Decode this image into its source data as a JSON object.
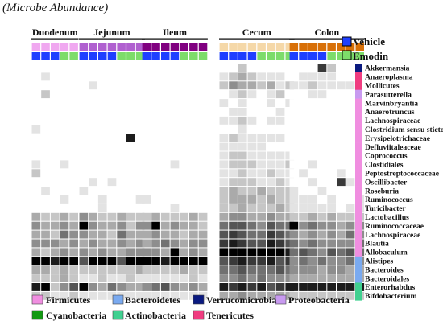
{
  "title": "(Microbe Abundance)",
  "treatment_legend": [
    {
      "label": "Vehicle",
      "color": "#1f3fff"
    },
    {
      "label": "Emodin",
      "color": "#7ddc6a"
    }
  ],
  "phylum_legend": [
    {
      "label": "Firmicutes",
      "color": "#f08ee0"
    },
    {
      "label": "Bacteroidetes",
      "color": "#7aaaf0"
    },
    {
      "label": "Verrucomicrobia",
      "color": "#0a1a80"
    },
    {
      "label": "Proteobacteria",
      "color": "#c89af0"
    },
    {
      "label": "Cyanobacteria",
      "color": "#129a12"
    },
    {
      "label": "Actinobacteria",
      "color": "#40d090"
    },
    {
      "label": "Tenericutes",
      "color": "#f03c80"
    }
  ],
  "chart_data": {
    "type": "heatmap",
    "sections": [
      {
        "name": "Duodenum",
        "columns": 5,
        "color": "#f0a8f0",
        "vehicle": 3
      },
      {
        "name": "Jejunum",
        "columns": 7,
        "color": "#b060d0",
        "vehicle": 4
      },
      {
        "name": "Ileum",
        "columns": 7,
        "color": "#800080",
        "vehicle": 4
      },
      {
        "name": "Cecum",
        "columns": 8,
        "color": "#f5d8a8",
        "vehicle": 4
      },
      {
        "name": "Colon",
        "columns": 8,
        "color": "#d87008",
        "vehicle": 4
      }
    ],
    "rows": [
      {
        "label": "Akkermansia",
        "phylum": "Verrucomicrobia"
      },
      {
        "label": "Anaeroplasma",
        "phylum": "Tenericutes"
      },
      {
        "label": "Mollicutes",
        "phylum": "Tenericutes"
      },
      {
        "label": "Parasutterella",
        "phylum": "Proteobacteria"
      },
      {
        "label": "Marvinbryantia",
        "phylum": "Firmicutes"
      },
      {
        "label": "Anaerotruncus",
        "phylum": "Firmicutes"
      },
      {
        "label": "Lachnospiraceae",
        "phylum": "Firmicutes"
      },
      {
        "label": "Clostridium sensu sticto",
        "phylum": "Firmicutes"
      },
      {
        "label": "Erysipelotrichaceae",
        "phylum": "Firmicutes"
      },
      {
        "label": "Defluviitaleaceae",
        "phylum": "Firmicutes"
      },
      {
        "label": "Coprococcus",
        "phylum": "Firmicutes"
      },
      {
        "label": "Clostidiales",
        "phylum": "Firmicutes"
      },
      {
        "label": "Peptostreptococcaceae",
        "phylum": "Firmicutes"
      },
      {
        "label": "Oscillibacter",
        "phylum": "Firmicutes"
      },
      {
        "label": "Roseburia",
        "phylum": "Firmicutes"
      },
      {
        "label": "Ruminococcus",
        "phylum": "Firmicutes"
      },
      {
        "label": "Turicibacter",
        "phylum": "Firmicutes"
      },
      {
        "label": "Lactobacillus",
        "phylum": "Firmicutes"
      },
      {
        "label": "Ruminococcaceae",
        "phylum": "Firmicutes"
      },
      {
        "label": "Lachnospiraceae",
        "phylum": "Firmicutes"
      },
      {
        "label": "Blautia",
        "phylum": "Firmicutes"
      },
      {
        "label": "Allobaculum",
        "phylum": "Firmicutes"
      },
      {
        "label": "Alistipes",
        "phylum": "Bacteroidetes"
      },
      {
        "label": "Bacteroides",
        "phylum": "Bacteroidetes"
      },
      {
        "label": "Bacteroidales",
        "phylum": "Bacteroidetes"
      },
      {
        "label": "Enterorhabdus",
        "phylum": "Actinobacteria"
      },
      {
        "label": "Bifdobacterium",
        "phylum": "Actinobacteria"
      }
    ],
    "values": [
      [
        0,
        0,
        0,
        0,
        0,
        0,
        0,
        0,
        0,
        0,
        0,
        0,
        0,
        0,
        0,
        0,
        0,
        0,
        0,
        0,
        0,
        2,
        0,
        0,
        0,
        0,
        0,
        0,
        0,
        0,
        7,
        2,
        0,
        0,
        0
      ],
      [
        0,
        1,
        0,
        0,
        0,
        0,
        0,
        0,
        0,
        0,
        0,
        0,
        0,
        0,
        0,
        0,
        0,
        0,
        0,
        1,
        2,
        3,
        2,
        1,
        1,
        1,
        0,
        0,
        1,
        1,
        1,
        1,
        0,
        0,
        0
      ],
      [
        0,
        0,
        0,
        0,
        0,
        0,
        1,
        0,
        0,
        0,
        0,
        0,
        0,
        0,
        0,
        0,
        0,
        0,
        0,
        2,
        4,
        3,
        3,
        2,
        3,
        1,
        2,
        1,
        1,
        2,
        1,
        1,
        1,
        1,
        0
      ],
      [
        0,
        2,
        0,
        0,
        0,
        0,
        0,
        0,
        0,
        0,
        0,
        0,
        0,
        0,
        0,
        0,
        0,
        0,
        0,
        0,
        1,
        2,
        1,
        0,
        1,
        2,
        0,
        0,
        0,
        1,
        1,
        0,
        0,
        0,
        0
      ],
      [
        0,
        0,
        0,
        0,
        0,
        0,
        0,
        0,
        0,
        0,
        0,
        0,
        0,
        0,
        0,
        0,
        0,
        0,
        0,
        1,
        0,
        1,
        0,
        0,
        1,
        0,
        1,
        0,
        0,
        0,
        0,
        0,
        0,
        0,
        0
      ],
      [
        0,
        0,
        0,
        0,
        0,
        0,
        0,
        0,
        0,
        0,
        0,
        0,
        0,
        0,
        0,
        0,
        0,
        0,
        0,
        0,
        1,
        1,
        0,
        0,
        0,
        1,
        0,
        0,
        0,
        0,
        0,
        0,
        0,
        0,
        0
      ],
      [
        0,
        0,
        0,
        0,
        0,
        0,
        0,
        0,
        0,
        0,
        0,
        0,
        0,
        0,
        0,
        0,
        0,
        0,
        0,
        1,
        1,
        2,
        1,
        0,
        1,
        1,
        0,
        0,
        0,
        0,
        0,
        0,
        0,
        0,
        0
      ],
      [
        1,
        0,
        0,
        0,
        0,
        0,
        0,
        0,
        0,
        0,
        0,
        0,
        0,
        0,
        0,
        0,
        0,
        0,
        0,
        0,
        0,
        1,
        0,
        0,
        0,
        0,
        0,
        0,
        0,
        0,
        0,
        0,
        0,
        0,
        0
      ],
      [
        0,
        0,
        0,
        0,
        0,
        0,
        0,
        0,
        0,
        0,
        8,
        0,
        0,
        0,
        0,
        0,
        0,
        0,
        0,
        1,
        2,
        1,
        1,
        1,
        1,
        1,
        0,
        0,
        0,
        0,
        0,
        0,
        0,
        0,
        0
      ],
      [
        0,
        0,
        0,
        0,
        0,
        0,
        0,
        0,
        0,
        0,
        0,
        0,
        0,
        0,
        0,
        0,
        0,
        0,
        0,
        1,
        1,
        1,
        1,
        1,
        0,
        0,
        0,
        0,
        0,
        0,
        0,
        0,
        0,
        0,
        0
      ],
      [
        0,
        0,
        0,
        0,
        0,
        0,
        0,
        0,
        0,
        0,
        0,
        0,
        0,
        0,
        0,
        0,
        0,
        0,
        0,
        1,
        2,
        2,
        1,
        1,
        1,
        1,
        1,
        0,
        0,
        0,
        0,
        0,
        0,
        0,
        0
      ],
      [
        1,
        0,
        0,
        1,
        0,
        0,
        0,
        0,
        0,
        0,
        0,
        0,
        0,
        0,
        0,
        1,
        0,
        0,
        0,
        1,
        2,
        2,
        2,
        1,
        1,
        1,
        2,
        0,
        0,
        1,
        0,
        0,
        0,
        0,
        0
      ],
      [
        2,
        0,
        0,
        0,
        0,
        0,
        0,
        0,
        0,
        0,
        0,
        0,
        0,
        0,
        0,
        0,
        0,
        0,
        0,
        1,
        1,
        2,
        1,
        1,
        2,
        1,
        1,
        0,
        1,
        0,
        0,
        0,
        1,
        0,
        0
      ],
      [
        0,
        0,
        0,
        0,
        0,
        0,
        1,
        0,
        1,
        0,
        0,
        0,
        0,
        0,
        0,
        0,
        0,
        0,
        0,
        1,
        2,
        2,
        2,
        1,
        1,
        2,
        1,
        0,
        0,
        1,
        0,
        0,
        7,
        1,
        0
      ],
      [
        0,
        1,
        0,
        0,
        0,
        1,
        0,
        0,
        0,
        0,
        0,
        0,
        0,
        0,
        0,
        0,
        0,
        0,
        0,
        2,
        3,
        2,
        2,
        3,
        2,
        2,
        2,
        1,
        0,
        0,
        1,
        0,
        0,
        0,
        0
      ],
      [
        0,
        0,
        0,
        1,
        0,
        0,
        0,
        1,
        0,
        0,
        0,
        1,
        1,
        0,
        0,
        0,
        0,
        0,
        0,
        2,
        3,
        3,
        3,
        2,
        3,
        2,
        2,
        1,
        1,
        1,
        0,
        1,
        0,
        0,
        1
      ],
      [
        0,
        0,
        0,
        0,
        0,
        0,
        0,
        1,
        0,
        0,
        0,
        0,
        0,
        0,
        0,
        1,
        0,
        0,
        0,
        2,
        2,
        3,
        2,
        2,
        2,
        3,
        2,
        1,
        1,
        1,
        1,
        1,
        0,
        1,
        1
      ],
      [
        3,
        2,
        2,
        3,
        2,
        4,
        3,
        2,
        2,
        3,
        2,
        2,
        2,
        3,
        2,
        2,
        2,
        3,
        2,
        3,
        4,
        4,
        3,
        3,
        4,
        3,
        3,
        2,
        2,
        3,
        2,
        3,
        2,
        2,
        2
      ],
      [
        4,
        3,
        3,
        4,
        3,
        9,
        4,
        3,
        3,
        4,
        2,
        4,
        4,
        9,
        3,
        4,
        3,
        3,
        2,
        5,
        6,
        6,
        5,
        4,
        6,
        5,
        5,
        9,
        4,
        5,
        4,
        4,
        3,
        4,
        4
      ],
      [
        3,
        3,
        2,
        5,
        4,
        4,
        3,
        3,
        2,
        5,
        3,
        3,
        3,
        4,
        3,
        3,
        2,
        3,
        3,
        6,
        7,
        6,
        5,
        5,
        7,
        6,
        5,
        4,
        3,
        4,
        3,
        4,
        3,
        5,
        4
      ],
      [
        4,
        4,
        4,
        3,
        4,
        3,
        4,
        3,
        3,
        4,
        3,
        4,
        3,
        4,
        5,
        4,
        3,
        4,
        4,
        7,
        8,
        7,
        6,
        6,
        8,
        7,
        6,
        5,
        4,
        5,
        4,
        4,
        4,
        4,
        5
      ],
      [
        3,
        2,
        3,
        4,
        3,
        4,
        3,
        4,
        3,
        3,
        4,
        4,
        4,
        4,
        3,
        9,
        3,
        4,
        3,
        9,
        9,
        9,
        9,
        9,
        9,
        9,
        8,
        5,
        6,
        5,
        4,
        6,
        5,
        6,
        5
      ],
      [
        9,
        9,
        8,
        9,
        9,
        6,
        9,
        9,
        9,
        6,
        9,
        9,
        9,
        9,
        8,
        9,
        9,
        9,
        9,
        6,
        7,
        8,
        7,
        7,
        8,
        6,
        7,
        4,
        5,
        4,
        5,
        4,
        4,
        5,
        4
      ],
      [
        3,
        3,
        2,
        3,
        2,
        2,
        2,
        2,
        2,
        2,
        2,
        3,
        2,
        2,
        2,
        2,
        3,
        2,
        2,
        5,
        5,
        6,
        5,
        5,
        5,
        6,
        5,
        4,
        4,
        4,
        3,
        4,
        4,
        3,
        3
      ],
      [
        2,
        2,
        2,
        3,
        2,
        1,
        1,
        2,
        1,
        1,
        2,
        1,
        1,
        1,
        1,
        1,
        1,
        2,
        1,
        4,
        4,
        5,
        4,
        5,
        4,
        4,
        4,
        3,
        3,
        3,
        3,
        3,
        3,
        3,
        3
      ],
      [
        8,
        9,
        2,
        4,
        6,
        9,
        4,
        3,
        5,
        4,
        3,
        3,
        4,
        5,
        6,
        4,
        3,
        4,
        3,
        8,
        7,
        8,
        7,
        8,
        6,
        7,
        8,
        8,
        8,
        8,
        8,
        8,
        8,
        8,
        8
      ],
      [
        2,
        2,
        1,
        1,
        2,
        1,
        1,
        1,
        1,
        1,
        1,
        1,
        1,
        1,
        1,
        1,
        1,
        1,
        1,
        3,
        3,
        4,
        3,
        3,
        3,
        3,
        3,
        2,
        2,
        2,
        2,
        2,
        2,
        2,
        2
      ]
    ],
    "color_scale": "white to black, 0 = none, 9 = highest relative abundance"
  }
}
